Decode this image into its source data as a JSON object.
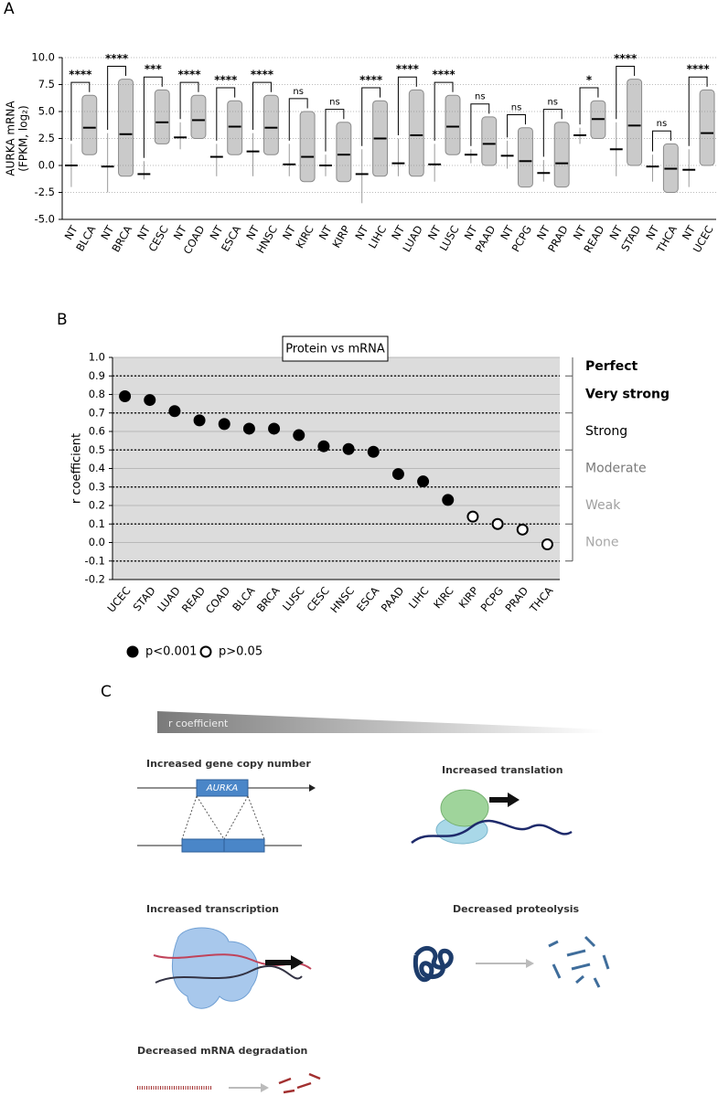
{
  "panel_labels": [
    "A",
    "B",
    "C"
  ],
  "chart_data": [
    {
      "type": "dot",
      "ylabel": "AURKA mRNA",
      "ylabel_unit": "(FPKM, log₂)",
      "categories": [
        "NT",
        "BLCA",
        "NT",
        "BRCA",
        "NT",
        "CESC",
        "NT",
        "COAD",
        "NT",
        "ESCA",
        "NT",
        "HNSC",
        "NT",
        "KIRC",
        "NT",
        "KIRP",
        "NT",
        "LIHC",
        "NT",
        "LUAD",
        "NT",
        "LUSC",
        "NT",
        "PAAD",
        "NT",
        "PCPG",
        "NT",
        "PRAD",
        "NT",
        "READ",
        "NT",
        "STAD",
        "NT",
        "THCA",
        "NT",
        "UCEC"
      ],
      "values": [
        0,
        3.5,
        -0.1,
        2.9,
        -0.8,
        4.0,
        2.6,
        4.2,
        0.8,
        3.6,
        1.3,
        3.5,
        0.1,
        0.8,
        0.0,
        1.0,
        -0.8,
        2.5,
        0.2,
        2.8,
        0.1,
        3.6,
        1.0,
        2.0,
        0.9,
        0.4,
        -0.7,
        0.2,
        2.8,
        4.3,
        1.5,
        3.7,
        -0.1,
        -0.3,
        -0.4,
        3.0
      ],
      "ranges": [
        [
          -2,
          2
        ],
        [
          1,
          6.5
        ],
        [
          -2.5,
          3
        ],
        [
          -1,
          8
        ],
        [
          -1.3,
          0.4
        ],
        [
          2,
          7
        ],
        [
          1.5,
          4
        ],
        [
          2.5,
          6.5
        ],
        [
          -1,
          2
        ],
        [
          1,
          6
        ],
        [
          -1,
          3
        ],
        [
          1,
          6.5
        ],
        [
          -1,
          2
        ],
        [
          -1.5,
          5
        ],
        [
          -1,
          1
        ],
        [
          -1.5,
          4
        ],
        [
          -3.5,
          1.5
        ],
        [
          -1,
          6
        ],
        [
          -1,
          2.5
        ],
        [
          -1,
          7
        ],
        [
          -1.5,
          2
        ],
        [
          1,
          6.5
        ],
        [
          0.2,
          1.5
        ],
        [
          0,
          4.5
        ],
        [
          -0.3,
          2.3
        ],
        [
          -2,
          3.5
        ],
        [
          -1.5,
          0.5
        ],
        [
          -2,
          4
        ],
        [
          2,
          3.5
        ],
        [
          2.5,
          6
        ],
        [
          -1,
          4
        ],
        [
          0,
          8
        ],
        [
          -1.5,
          1
        ],
        [
          -2.5,
          2
        ],
        [
          -2,
          1.5
        ],
        [
          0,
          7
        ]
      ],
      "significance": [
        "****",
        "****",
        "***",
        "****",
        "****",
        "****",
        "ns",
        "ns",
        "****",
        "****",
        "****",
        "ns",
        "ns",
        "ns",
        "*",
        "****",
        "ns",
        "****"
      ],
      "color": "#8a8a8a",
      "nt_color": "#9a9a9a",
      "ylim": [
        -5,
        10
      ],
      "yticks": [
        {
          "value": -5,
          "label": "-5.0"
        },
        -2.5,
        {
          "value": 0,
          "label": "0.0"
        },
        2.5,
        {
          "value": 5,
          "label": "5.0"
        },
        7.5,
        {
          "value": 10,
          "label": "10.0"
        }
      ],
      "grid": true
    },
    {
      "type": "scatter",
      "title": "Protein vs mRNA",
      "ylabel": "r coefficient",
      "categories": [
        "UCEC",
        "STAD",
        "LUAD",
        "READ",
        "COAD",
        "BLCA",
        "BRCA",
        "LUSC",
        "CESC",
        "HNSC",
        "ESCA",
        "PAAD",
        "LIHC",
        "KIRC",
        "KIRP",
        "PCPG",
        "PRAD",
        "THCA"
      ],
      "series": [
        {
          "name": "p<0.001",
          "color": "#000000",
          "filled": true,
          "values": [
            0.79,
            0.77,
            0.71,
            0.66,
            0.64,
            0.615,
            0.615,
            0.58,
            0.52,
            0.505,
            0.49,
            0.37,
            0.33,
            0.23,
            null,
            null,
            null,
            null
          ]
        },
        {
          "name": "p>0.05",
          "color": "#000000",
          "filled": false,
          "values": [
            null,
            null,
            null,
            null,
            null,
            null,
            null,
            null,
            null,
            null,
            null,
            null,
            null,
            null,
            0.14,
            0.1,
            0.07,
            -0.01
          ]
        }
      ],
      "ylim": [
        -0.2,
        1.0
      ],
      "yticks": [
        -0.2,
        -0.1,
        {
          "value": 0,
          "label": "0.0"
        },
        0.1,
        0.2,
        0.3,
        0.4,
        0.5,
        0.6,
        0.7,
        0.8,
        0.9,
        {
          "value": 1,
          "label": "1.0"
        }
      ],
      "background": "#dcdcdc",
      "bands": [
        {
          "label": "Perfect",
          "from": 0.9,
          "to": 1.0,
          "color": "#000000",
          "bold": true
        },
        {
          "label": "Very strong",
          "from": 0.7,
          "to": 0.9,
          "color": "#000000",
          "bold": true
        },
        {
          "label": "Strong",
          "from": 0.5,
          "to": 0.7,
          "color": "#000000",
          "bold": false
        },
        {
          "label": "Moderate",
          "from": 0.3,
          "to": 0.5,
          "color": "#7a7a7a",
          "bold": false
        },
        {
          "label": "Weak",
          "from": 0.1,
          "to": 0.3,
          "color": "#a0a0a0",
          "bold": false
        },
        {
          "label": "None",
          "from": -0.1,
          "to": 0.1,
          "color": "#a8a8a8",
          "bold": false
        }
      ],
      "legend": "bottom-left"
    }
  ],
  "diagram": {
    "gradient_label": "r coefficient",
    "items": [
      {
        "title": "Increased gene copy number",
        "gene": "AURKA"
      },
      {
        "title": "Increased translation"
      },
      {
        "title": "Increased transcription"
      },
      {
        "title": "Decreased proteolysis"
      },
      {
        "title": "Decreased mRNA degradation"
      }
    ]
  }
}
